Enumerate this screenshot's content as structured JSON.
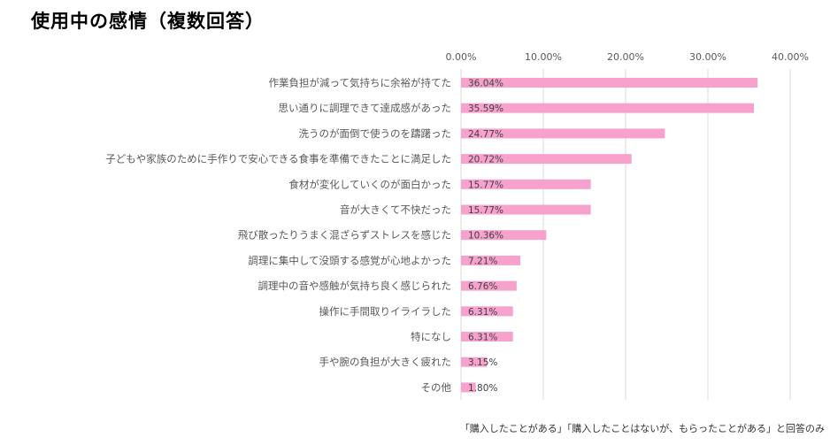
{
  "title": "使用中の感情（複数回答）",
  "footnote": "「購入したことがある」「購入したことはないが、もらったことがある」と回答のみ",
  "colors": {
    "bar": "#f7a1cd",
    "grid": "#d9d9d9",
    "label": "#595959",
    "value": "#404040"
  },
  "chart_data": {
    "type": "bar",
    "orientation": "horizontal",
    "title": "使用中の感情（複数回答）",
    "xlim": [
      0,
      40
    ],
    "ticks": [
      "0.00%",
      "10.00%",
      "20.00%",
      "30.00%",
      "40.00%"
    ],
    "tick_values": [
      0,
      10,
      20,
      30,
      40
    ],
    "grid": true,
    "categories": [
      "作業負担が減って気持ちに余裕が持てた",
      "思い通りに調理できて達成感があった",
      "洗うのが面倒で使うのを躊躇った",
      "子どもや家族のために手作りで安心できる食事を準備できたことに満足した",
      "食材が変化していくのが面白かった",
      "音が大きくて不快だった",
      "飛び散ったりうまく混ざらずストレスを感じた",
      "調理に集中して没頭する感覚が心地よかった",
      "調理中の音や感触が気持ち良く感じられた",
      "操作に手間取りイライラした",
      "特になし",
      "手や腕の負担が大きく疲れた",
      "その他"
    ],
    "values": [
      36.04,
      35.59,
      24.77,
      20.72,
      15.77,
      15.77,
      10.36,
      7.21,
      6.76,
      6.31,
      6.31,
      3.15,
      1.8
    ],
    "value_labels": [
      "36.04%",
      "35.59%",
      "24.77%",
      "20.72%",
      "15.77%",
      "15.77%",
      "10.36%",
      "7.21%",
      "6.76%",
      "6.31%",
      "6.31%",
      "3.15%",
      "1.80%"
    ]
  }
}
